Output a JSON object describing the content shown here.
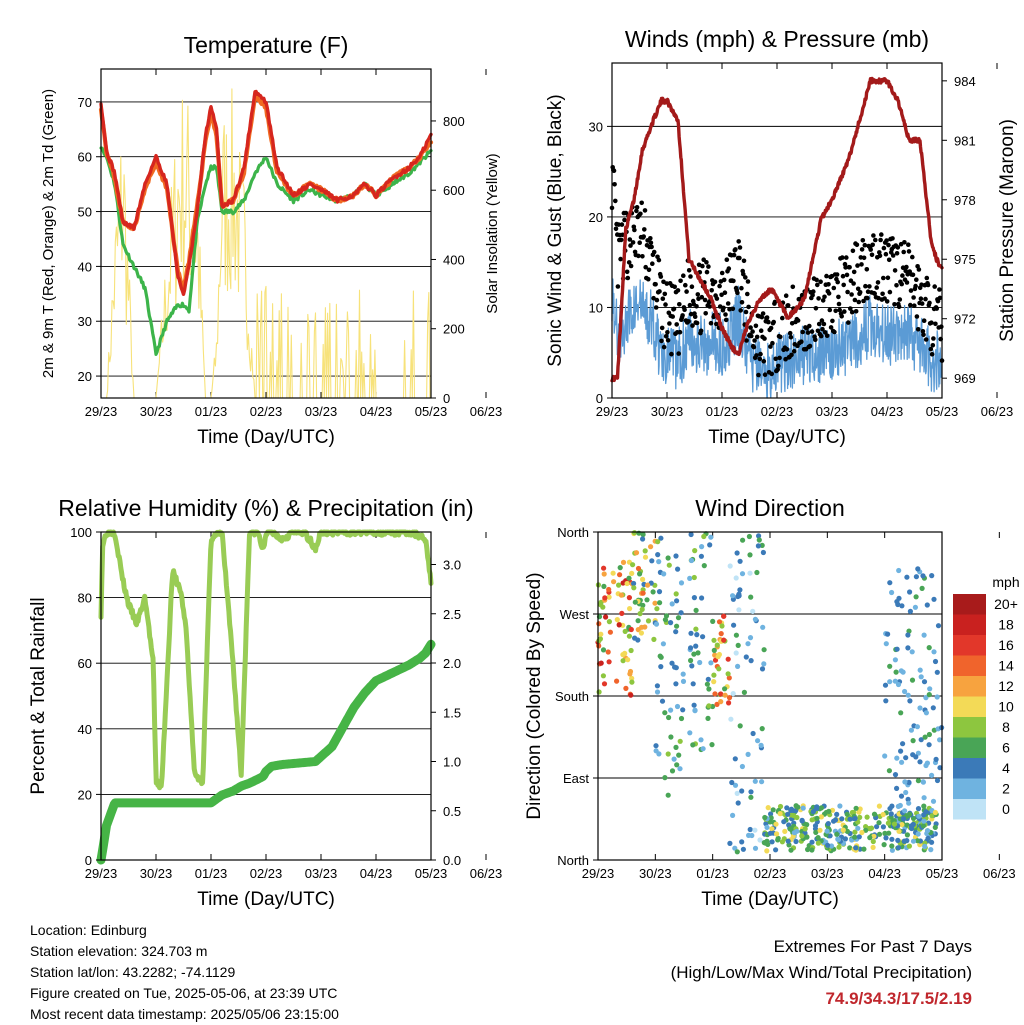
{
  "x_ticks": [
    "29/23",
    "30/23",
    "01/23",
    "02/23",
    "03/23",
    "04/23",
    "05/23",
    "06/23"
  ],
  "colors": {
    "temp_2m": "#d6261e",
    "temp_9m": "#f06a22",
    "dewpoint": "#3cb44a",
    "solar": "#f7e27a",
    "wind": "#5b9bd5",
    "gust": "#000000",
    "pressure": "#a31a1a",
    "rh": "#99cc55",
    "precip": "#46b446"
  },
  "chart_data": [
    {
      "type": "line",
      "title": "Temperature (F)",
      "xlabel": "Time (Day/UTC)",
      "ylabel": "2m & 9m T (Red, Orange) & 2m Td (Green)",
      "y2label": "Solar Insolation (Yellow)",
      "ylim": [
        16,
        76
      ],
      "y_ticks": [
        20,
        30,
        40,
        50,
        60,
        70
      ],
      "y2lim": [
        0,
        950
      ],
      "y2_ticks": [
        0,
        200,
        400,
        600,
        800
      ],
      "grid": true,
      "x": [
        0,
        0.1,
        0.25,
        0.4,
        0.6,
        0.8,
        1.0,
        1.2,
        1.4,
        1.5,
        1.6,
        1.75,
        1.9,
        2.0,
        2.1,
        2.2,
        2.4,
        2.6,
        2.8,
        3.0,
        3.2,
        3.5,
        3.8,
        4.0,
        4.3,
        4.6,
        4.8,
        5.0,
        5.3,
        5.6,
        5.8,
        6.0
      ],
      "series": [
        {
          "name": "2m T",
          "values": [
            70,
            61,
            57,
            48,
            47,
            55,
            60,
            55,
            38,
            35,
            40,
            50,
            64,
            69,
            65,
            51,
            52,
            58,
            72,
            70,
            58,
            53,
            55,
            54,
            52,
            53,
            55,
            53,
            56,
            58,
            60,
            64
          ]
        },
        {
          "name": "9m T",
          "values": [
            69,
            61,
            56,
            48,
            47,
            54,
            59,
            54,
            39,
            36,
            41,
            51,
            63,
            68,
            64,
            51,
            52,
            57,
            71,
            69,
            57,
            53,
            55,
            54,
            52,
            53,
            55,
            53,
            56,
            58,
            60,
            63
          ]
        },
        {
          "name": "2m Td",
          "values": [
            62,
            60,
            55,
            44,
            40,
            36,
            24,
            30,
            33,
            33,
            32,
            48,
            55,
            58,
            58,
            50,
            50,
            52,
            57,
            60,
            55,
            52,
            54,
            53,
            52,
            53,
            55,
            53,
            55,
            57,
            59,
            61
          ]
        },
        {
          "name": "Solar",
          "values": [
            0,
            0,
            520,
            900,
            0,
            0,
            0,
            480,
            870,
            930,
            880,
            700,
            0,
            0,
            200,
            850,
            900,
            650,
            0,
            0,
            0,
            0,
            0,
            0,
            0,
            0,
            0,
            0,
            0,
            0,
            0,
            0
          ]
        }
      ]
    },
    {
      "type": "line",
      "title": "Winds (mph) & Pressure (mb)",
      "xlabel": "Time (Day/UTC)",
      "ylabel": "Sonic Wind & Gust (Blue, Black)",
      "y2label": "Station Pressure (Maroon)",
      "ylim": [
        0,
        37
      ],
      "y_ticks": [
        0,
        10,
        20,
        30
      ],
      "y2lim": [
        968,
        984.9
      ],
      "y2_ticks": [
        969,
        972,
        975,
        978,
        981,
        984
      ],
      "grid": true,
      "x": [
        0,
        0.1,
        0.25,
        0.4,
        0.55,
        0.75,
        0.9,
        1.0,
        1.2,
        1.4,
        1.6,
        1.8,
        2.0,
        2.2,
        2.3,
        2.5,
        2.7,
        2.9,
        3.0,
        3.2,
        3.5,
        3.8,
        4.0,
        4.3,
        4.5,
        4.7,
        4.85,
        5.0,
        5.2,
        5.4,
        5.6,
        5.8,
        5.9,
        6.0
      ],
      "series": [
        {
          "name": "Wind",
          "values": [
            12,
            7,
            8,
            10,
            10,
            8,
            5,
            5,
            4,
            7,
            6,
            6,
            6,
            7,
            9,
            4,
            3,
            3,
            4,
            4,
            5,
            5,
            5,
            6,
            7,
            8,
            8,
            7,
            7,
            7,
            6,
            4,
            4,
            4
          ]
        },
        {
          "name": "Gust",
          "values": [
            25,
            15,
            17,
            18,
            18,
            14,
            10,
            9,
            8,
            12,
            11,
            12,
            11,
            13,
            15,
            8,
            6,
            6,
            7,
            8,
            9,
            10,
            11,
            12,
            14,
            15,
            15,
            14,
            14,
            13,
            11,
            9,
            8,
            8
          ]
        },
        {
          "name": "Pressure",
          "values": [
            969,
            969,
            976.5,
            978,
            980.5,
            982,
            983,
            983,
            982,
            975,
            974,
            973,
            971.5,
            970.5,
            970.2,
            972,
            973,
            973.5,
            973,
            972,
            973,
            977,
            978,
            980,
            982,
            984,
            984,
            984,
            983,
            981,
            981,
            976,
            975,
            974.5
          ]
        }
      ]
    },
    {
      "type": "line",
      "title": "Relative Humidity (%) & Precipitation (in)",
      "xlabel": "Time (Day/UTC)",
      "ylabel": "Percent & Total Rainfall",
      "ylim": [
        0,
        100
      ],
      "y_ticks": [
        0,
        20,
        40,
        60,
        80,
        100
      ],
      "y2lim": [
        0,
        3.33
      ],
      "y2_ticks": [
        "0.0",
        "0.5",
        "1.0",
        "1.5",
        "2.0",
        "2.5",
        "3.0"
      ],
      "grid": true,
      "x": [
        0,
        0.03,
        0.1,
        0.25,
        0.4,
        0.5,
        0.65,
        0.8,
        0.95,
        1.0,
        1.1,
        1.2,
        1.3,
        1.45,
        1.55,
        1.7,
        1.85,
        2.0,
        2.2,
        2.4,
        2.55,
        2.7,
        2.85,
        2.95,
        3.0,
        3.1,
        3.3,
        3.5,
        3.7,
        3.9,
        4.0,
        4.2,
        4.4,
        4.6,
        4.8,
        5.0,
        5.3,
        5.6,
        5.8,
        5.9,
        6.0
      ],
      "series": [
        {
          "name": "Relative Humidity",
          "values": [
            75,
            96,
            100,
            100,
            85,
            78,
            72,
            80,
            60,
            24,
            22,
            55,
            88,
            82,
            70,
            26,
            24,
            98,
            100,
            60,
            26,
            100,
            100,
            94,
            100,
            100,
            98,
            100,
            100,
            95,
            100,
            100,
            100,
            100,
            100,
            100,
            100,
            100,
            99,
            98,
            85
          ]
        },
        {
          "name": "Total Precipitation",
          "values": [
            0,
            0.1,
            0.35,
            0.58,
            0.58,
            0.58,
            0.58,
            0.58,
            0.58,
            0.58,
            0.58,
            0.58,
            0.58,
            0.58,
            0.58,
            0.58,
            0.58,
            0.58,
            0.66,
            0.7,
            0.75,
            0.78,
            0.82,
            0.85,
            0.9,
            0.95,
            0.97,
            0.98,
            0.99,
            1.0,
            1.05,
            1.15,
            1.35,
            1.55,
            1.7,
            1.82,
            1.9,
            1.98,
            2.05,
            2.1,
            2.19
          ]
        }
      ]
    },
    {
      "type": "scatter",
      "title": "Wind Direction",
      "xlabel": "Time (Day/UTC)",
      "ylabel": "Direction (Colored By Speed)",
      "ylim": [
        0,
        360
      ],
      "y_ticks": [
        "North",
        "East",
        "South",
        "West",
        "North"
      ],
      "grid": true,
      "colorbar": {
        "title": "mph",
        "labels": [
          "20+",
          "18",
          "16",
          "14",
          "12",
          "10",
          "8",
          "6",
          "4",
          "2",
          "0"
        ],
        "colors": [
          "#a81b1b",
          "#c9211f",
          "#e2372a",
          "#f0642c",
          "#f7a33f",
          "#f3da57",
          "#8dc63f",
          "#49a556",
          "#3b7ab8",
          "#6fb3e0",
          "#bfe3f6"
        ]
      },
      "clusters": [
        {
          "x": [
            0,
            0.6
          ],
          "y": [
            180,
            330
          ],
          "speed": [
            6,
            18
          ]
        },
        {
          "x": [
            0.6,
            1.0
          ],
          "y": [
            240,
            360
          ],
          "speed": [
            3,
            14
          ]
        },
        {
          "x": [
            1.0,
            1.5
          ],
          "y": [
            70,
            360
          ],
          "speed": [
            2,
            8
          ]
        },
        {
          "x": [
            1.6,
            2.0
          ],
          "y": [
            120,
            360
          ],
          "speed": [
            1,
            8
          ]
        },
        {
          "x": [
            2.0,
            2.3
          ],
          "y": [
            170,
            270
          ],
          "speed": [
            6,
            17
          ]
        },
        {
          "x": [
            2.3,
            2.9
          ],
          "y": [
            0,
            360
          ],
          "speed": [
            0,
            6
          ]
        },
        {
          "x": [
            2.9,
            5.9
          ],
          "y": [
            10,
            60
          ],
          "speed": [
            2,
            10
          ]
        },
        {
          "x": [
            5.0,
            6.0
          ],
          "y": [
            20,
            320
          ],
          "speed": [
            1,
            6
          ]
        }
      ]
    }
  ],
  "info": {
    "location": "Location: Edinburg",
    "elevation": "Station elevation: 324.703 m",
    "latlon": "Station lat/lon: 43.2282; -74.1129",
    "created": "Figure created on Tue, 2025-05-06, at 23:39 UTC",
    "recent": "Most recent data timestamp: 2025/05/06 23:15:00"
  },
  "extremes": {
    "line1": "Extremes For Past 7 Days",
    "line2": "(High/Low/Max Wind/Total Precipitation)",
    "values": "74.9/34.3/17.5/2.19"
  }
}
